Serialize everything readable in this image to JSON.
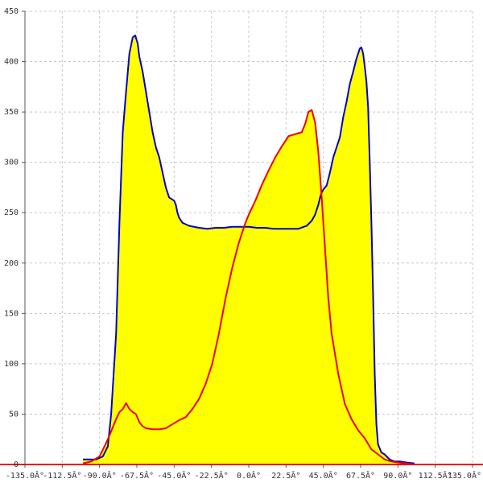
{
  "chart_data": {
    "type": "area",
    "title": "",
    "xlabel": "",
    "ylabel": "",
    "xlim": [
      -135,
      135
    ],
    "ylim": [
      0,
      450
    ],
    "grid": true,
    "legend": "none",
    "x_ticks": [
      {
        "value": -135,
        "label": "-135.0Â°"
      },
      {
        "value": -112.5,
        "label": "-112.5Â°"
      },
      {
        "value": -90,
        "label": "-90.0Â°"
      },
      {
        "value": -67.5,
        "label": "-67.5Â°"
      },
      {
        "value": -45,
        "label": "-45.0Â°"
      },
      {
        "value": -22.5,
        "label": "-22.5Â°"
      },
      {
        "value": 0,
        "label": "0.0Â°"
      },
      {
        "value": 22.5,
        "label": "22.5Â°"
      },
      {
        "value": 45,
        "label": "45.0Â°"
      },
      {
        "value": 67.5,
        "label": "67.5Â°"
      },
      {
        "value": 90,
        "label": "90.0Â°"
      },
      {
        "value": 112.5,
        "label": "112.5Â°"
      },
      {
        "value": 135,
        "label": "135.0Â°"
      }
    ],
    "y_ticks": [
      {
        "value": 0,
        "label": "0"
      },
      {
        "value": 50,
        "label": "50"
      },
      {
        "value": 100,
        "label": "100"
      },
      {
        "value": 150,
        "label": "150"
      },
      {
        "value": 200,
        "label": "200"
      },
      {
        "value": 250,
        "label": "250"
      },
      {
        "value": 300,
        "label": "300"
      },
      {
        "value": 350,
        "label": "350"
      },
      {
        "value": 400,
        "label": "400"
      },
      {
        "value": 450,
        "label": "450"
      }
    ],
    "colors": {
      "fill": "#ffff00",
      "series_blue": "#0000cc",
      "series_red": "#ee0000",
      "grid": "#c8c8c8",
      "axis": "#555555",
      "baseline": "#ee0000"
    },
    "series": [
      {
        "color": "#0000cc",
        "filled": true,
        "x": [
          -100,
          -92,
          -88,
          -85,
          -83,
          -80,
          -78,
          -76,
          -74,
          -72,
          -70,
          -68.5,
          -67,
          -66,
          -64,
          -62,
          -60,
          -58,
          -56,
          -54,
          -52,
          -50,
          -48,
          -46,
          -45,
          -44,
          -43,
          -42,
          -40,
          -36,
          -30,
          -25,
          -20,
          -15,
          -10,
          -5,
          0,
          5,
          10,
          15,
          20,
          25,
          30,
          35,
          38,
          40,
          42,
          43,
          44,
          45,
          47,
          49,
          51,
          53,
          55,
          57,
          59,
          61,
          63,
          65,
          67,
          68,
          69,
          70,
          71,
          72,
          73,
          74,
          75,
          76,
          77,
          78,
          80,
          82,
          85,
          88,
          91,
          95,
          100
        ],
        "y": [
          5,
          5,
          8,
          18,
          50,
          130,
          240,
          330,
          370,
          408,
          424,
          426,
          418,
          405,
          390,
          370,
          350,
          330,
          315,
          305,
          290,
          275,
          265,
          263,
          262,
          258,
          250,
          245,
          240,
          237,
          235,
          234,
          235,
          235,
          236,
          236,
          236,
          235,
          235,
          234,
          234,
          234,
          234,
          237,
          242,
          248,
          258,
          265,
          270,
          273,
          277,
          290,
          305,
          315,
          325,
          345,
          360,
          378,
          390,
          403,
          413,
          414,
          408,
          395,
          380,
          355,
          300,
          240,
          170,
          90,
          40,
          20,
          12,
          10,
          5,
          3,
          3,
          2,
          1
        ]
      },
      {
        "color": "#ee0000",
        "filled": true,
        "x": [
          -100,
          -95,
          -90,
          -87,
          -85,
          -83,
          -80,
          -78,
          -76,
          -74,
          -72,
          -70,
          -68,
          -66,
          -64,
          -62,
          -58,
          -54,
          -50,
          -46,
          -42,
          -38,
          -34,
          -30,
          -26,
          -22,
          -18,
          -14,
          -10,
          -6,
          -2,
          0,
          4,
          8,
          12,
          16,
          20,
          24,
          28,
          32,
          34,
          36,
          38,
          40,
          42,
          44,
          46,
          48,
          50,
          54,
          58,
          62,
          66,
          70,
          74,
          78,
          82,
          86,
          90,
          95,
          100
        ],
        "y": [
          1,
          3,
          8,
          18,
          25,
          33,
          45,
          52,
          55,
          61,
          55,
          52,
          50,
          42,
          38,
          36,
          35,
          35,
          36,
          40,
          44,
          47,
          55,
          65,
          80,
          100,
          130,
          165,
          195,
          220,
          240,
          248,
          262,
          278,
          292,
          305,
          316,
          326,
          328,
          330,
          338,
          350,
          352,
          340,
          310,
          265,
          215,
          165,
          130,
          90,
          60,
          45,
          34,
          26,
          15,
          10,
          5,
          3,
          2,
          1,
          0
        ]
      }
    ]
  }
}
